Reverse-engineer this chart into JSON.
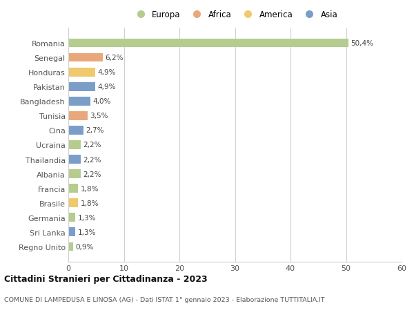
{
  "countries": [
    "Romania",
    "Senegal",
    "Honduras",
    "Pakistan",
    "Bangladesh",
    "Tunisia",
    "Cina",
    "Ucraina",
    "Thailandia",
    "Albania",
    "Francia",
    "Brasile",
    "Germania",
    "Sri Lanka",
    "Regno Unito"
  ],
  "values": [
    50.4,
    6.2,
    4.9,
    4.9,
    4.0,
    3.5,
    2.7,
    2.2,
    2.2,
    2.2,
    1.8,
    1.8,
    1.3,
    1.3,
    0.9
  ],
  "labels": [
    "50,4%",
    "6,2%",
    "4,9%",
    "4,9%",
    "4,0%",
    "3,5%",
    "2,7%",
    "2,2%",
    "2,2%",
    "2,2%",
    "1,8%",
    "1,8%",
    "1,3%",
    "1,3%",
    "0,9%"
  ],
  "continents": [
    "Europa",
    "Africa",
    "America",
    "Asia",
    "Asia",
    "Africa",
    "Asia",
    "Europa",
    "Asia",
    "Europa",
    "Europa",
    "America",
    "Europa",
    "Asia",
    "Europa"
  ],
  "colors": {
    "Europa": "#b5cc8e",
    "Africa": "#e8a87c",
    "America": "#f0c96e",
    "Asia": "#7b9ec8"
  },
  "legend_order": [
    "Europa",
    "Africa",
    "America",
    "Asia"
  ],
  "title": "Cittadini Stranieri per Cittadinanza - 2023",
  "subtitle": "COMUNE DI LAMPEDUSA E LINOSA (AG) - Dati ISTAT 1° gennaio 2023 - Elaborazione TUTTITALIA.IT",
  "xlim": [
    0,
    60
  ],
  "xticks": [
    0,
    10,
    20,
    30,
    40,
    50,
    60
  ],
  "bg_color": "#ffffff",
  "grid_color": "#d0d0d0"
}
